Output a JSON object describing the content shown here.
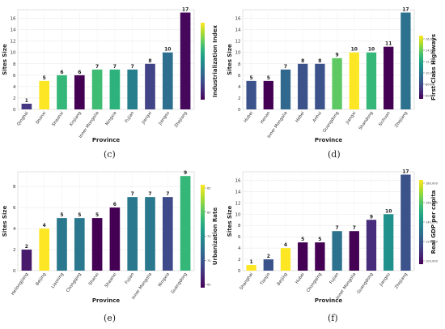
{
  "chart_data": [
    {
      "type": "bar",
      "panel": "(c)",
      "categories": [
        "Qinghai",
        "Shanxi",
        "Shaanxi",
        "Xinjiang",
        "Inner Mongolia",
        "Ningxia",
        "Fujian",
        "Jiangxi",
        "Jiangsu",
        "Zhejiang"
      ],
      "values": [
        1,
        5,
        6,
        6,
        7,
        7,
        7,
        8,
        10,
        17
      ],
      "colors": [
        "#453781",
        "#fde725",
        "#35b779",
        "#440154",
        "#3fbc73",
        "#2db27d",
        "#277f8e",
        "#414487",
        "#2e6e8e",
        "#46085c"
      ],
      "xlabel": "Province",
      "ylabel": "Sites Size",
      "ylim": [
        0,
        17.5
      ],
      "yticks": [
        0,
        2,
        4,
        6,
        8,
        10,
        12,
        14,
        16
      ],
      "colorbar_label": "Industrialization Index",
      "colorbar_ticks": [],
      "grid": true
    },
    {
      "type": "bar",
      "panel": "(d)",
      "categories": [
        "Hubei",
        "Henan",
        "Inner Mongolia",
        "Hebei",
        "Anhui",
        "Guangdong",
        "Jiangxi",
        "Shandong",
        "Sichuan",
        "Zhejiang"
      ],
      "values": [
        5,
        5,
        7,
        8,
        8,
        9,
        10,
        10,
        11,
        17
      ],
      "colors": [
        "#3b528b",
        "#440154",
        "#31688e",
        "#3b528b",
        "#3b528b",
        "#5ec962",
        "#fde725",
        "#35b779",
        "#440154",
        "#2c728e"
      ],
      "xlabel": "Province",
      "ylabel": "Sites Size",
      "ylim": [
        0,
        17.5
      ],
      "yticks": [
        0,
        2,
        4,
        6,
        8,
        10,
        12,
        14,
        16
      ],
      "colorbar_label": "First-Class Highways",
      "colorbar_ticks": [
        "16,000",
        "14,000",
        "12,000",
        "10,000",
        "8000",
        "6000"
      ],
      "grid": true
    },
    {
      "type": "bar",
      "panel": "(e)",
      "categories": [
        "Heilongjiang",
        "Beijing",
        "Liaoning",
        "Chongqing",
        "Shanxi",
        "Shaanxi",
        "Fujian",
        "Inner Mongolia",
        "Ningxia",
        "Guangdong"
      ],
      "values": [
        2,
        4,
        5,
        5,
        5,
        6,
        7,
        7,
        7,
        9
      ],
      "colors": [
        "#481a6c",
        "#fde725",
        "#2a788e",
        "#2a788e",
        "#440154",
        "#440154",
        "#2a788e",
        "#2a788e",
        "#3e4a89",
        "#35b779"
      ],
      "xlabel": "Province",
      "ylabel": "Sites Size",
      "ylim": [
        0,
        9.4
      ],
      "yticks": [
        0,
        2,
        4,
        6,
        8
      ],
      "colorbar_label": "Urbanization Rate",
      "colorbar_ticks": [
        "85",
        "80",
        "75",
        "70",
        "65"
      ],
      "grid": true
    },
    {
      "type": "bar",
      "panel": "(f)",
      "categories": [
        "Shanghai",
        "Tianjin",
        "Beijing",
        "Hubei",
        "Chongqing",
        "Fujian",
        "Inner Mongolia",
        "Guangdong",
        "Jiangsu",
        "Zhejiang"
      ],
      "values": [
        1,
        2,
        4,
        5,
        5,
        7,
        7,
        9,
        10,
        17
      ],
      "colors": [
        "#fde725",
        "#3b528b",
        "#fde725",
        "#440154",
        "#440154",
        "#2c728e",
        "#440154",
        "#472d7b",
        "#21918c",
        "#3b528b"
      ],
      "xlabel": "Province",
      "ylabel": "Sites Size",
      "ylim": [
        0,
        17.5
      ],
      "yticks": [
        0,
        2,
        4,
        6,
        8,
        10,
        12,
        14,
        16
      ],
      "colorbar_label": "Real GDP per capita",
      "colorbar_ticks": [
        "180,000",
        "160,000",
        "140,000",
        "120,000",
        "100,000"
      ],
      "grid": true
    }
  ]
}
